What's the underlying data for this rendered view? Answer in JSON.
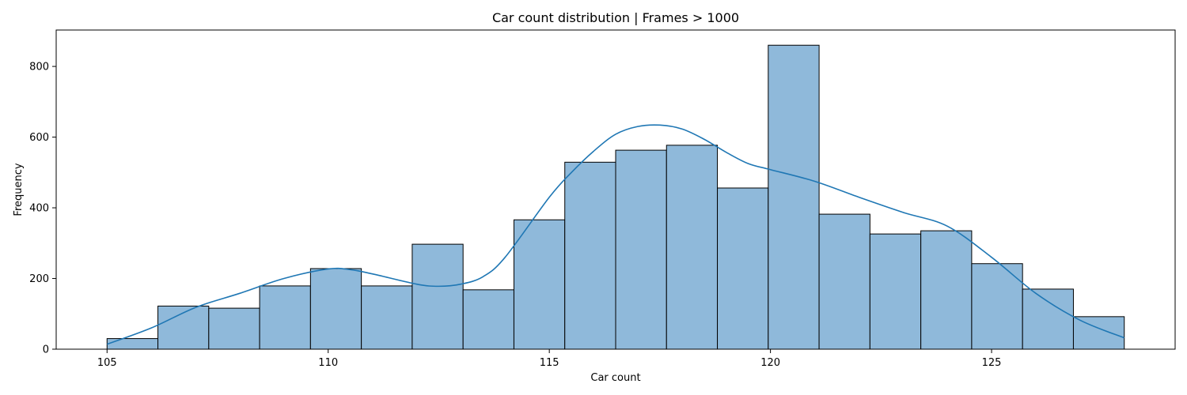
{
  "chart_data": {
    "type": "bar",
    "title": "Car count distribution | Frames > 1000",
    "xlabel": "Car count",
    "ylabel": "Frequency",
    "x_range": [
      105,
      128
    ],
    "xlim": [
      103.85,
      129.15
    ],
    "ylim": [
      0,
      903
    ],
    "bin_count": 20,
    "bins": [
      {
        "start": 105.0,
        "end": 106.15,
        "count": 30
      },
      {
        "start": 106.15,
        "end": 107.3,
        "count": 122
      },
      {
        "start": 107.3,
        "end": 108.45,
        "count": 116
      },
      {
        "start": 108.45,
        "end": 109.6,
        "count": 179
      },
      {
        "start": 109.6,
        "end": 110.75,
        "count": 228
      },
      {
        "start": 110.75,
        "end": 111.9,
        "count": 179
      },
      {
        "start": 111.9,
        "end": 113.05,
        "count": 297
      },
      {
        "start": 113.05,
        "end": 114.2,
        "count": 168
      },
      {
        "start": 114.2,
        "end": 115.35,
        "count": 366
      },
      {
        "start": 115.35,
        "end": 116.5,
        "count": 529
      },
      {
        "start": 116.5,
        "end": 117.65,
        "count": 563
      },
      {
        "start": 117.65,
        "end": 118.8,
        "count": 577
      },
      {
        "start": 118.8,
        "end": 119.95,
        "count": 456
      },
      {
        "start": 119.95,
        "end": 121.1,
        "count": 860
      },
      {
        "start": 121.1,
        "end": 122.25,
        "count": 382
      },
      {
        "start": 122.25,
        "end": 123.4,
        "count": 326
      },
      {
        "start": 123.4,
        "end": 124.55,
        "count": 335
      },
      {
        "start": 124.55,
        "end": 125.7,
        "count": 242
      },
      {
        "start": 125.7,
        "end": 126.85,
        "count": 170
      },
      {
        "start": 126.85,
        "end": 128.0,
        "count": 92
      }
    ],
    "kde": {
      "x": [
        105,
        106,
        107,
        108,
        109,
        110,
        110.5,
        111,
        112,
        112.5,
        113,
        113.5,
        114,
        115,
        115.5,
        116,
        116.5,
        117,
        117.5,
        118,
        118.5,
        119,
        119.5,
        120,
        121,
        122,
        123,
        124,
        125,
        126,
        127,
        128
      ],
      "y": [
        14,
        60,
        118,
        158,
        200,
        227,
        225,
        213,
        184,
        178,
        184,
        205,
        260,
        430,
        500,
        560,
        608,
        630,
        634,
        623,
        594,
        557,
        525,
        508,
        475,
        430,
        387,
        348,
        260,
        158,
        82,
        32
      ]
    },
    "xticks": [
      105,
      110,
      115,
      120,
      125
    ],
    "yticks": [
      0,
      200,
      400,
      600,
      800
    ],
    "colors": {
      "bar_fill": "#8fb9da",
      "bar_edge": "#000000",
      "kde_line": "#1f77b4"
    },
    "grid": false,
    "legend": null
  }
}
